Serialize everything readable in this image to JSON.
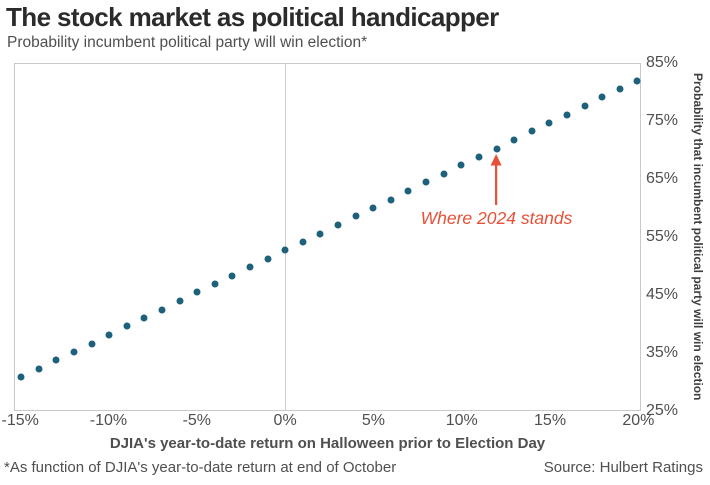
{
  "header": {
    "title": "The stock market as political handicapper",
    "subtitle": "Probability incumbent political party will win election*"
  },
  "chart_data": {
    "type": "scatter",
    "title": "The stock market as political handicapper",
    "subtitle": "Probability incumbent political party will win election*",
    "xlabel": "DJIA's year-to-date return on Halloween prior to Election Day",
    "ylabel": "Probability that incumbent political party will win election",
    "xlim": [
      -15.35,
      20.15
    ],
    "ylim": [
      25,
      85
    ],
    "x_ticks": [
      {
        "value": -15,
        "label": "-15%"
      },
      {
        "value": -10,
        "label": "-10%"
      },
      {
        "value": -5,
        "label": "-5%"
      },
      {
        "value": 0,
        "label": "0%"
      },
      {
        "value": 5,
        "label": "5%"
      },
      {
        "value": 10,
        "label": "10%"
      },
      {
        "value": 15,
        "label": "15%"
      },
      {
        "value": 20,
        "label": "20%"
      }
    ],
    "y_ticks": [
      {
        "value": 85,
        "label": "85%"
      },
      {
        "value": 75,
        "label": "75%"
      },
      {
        "value": 65,
        "label": "65%"
      },
      {
        "value": 55,
        "label": "55%"
      },
      {
        "value": 45,
        "label": "45%"
      },
      {
        "value": 35,
        "label": "35%"
      },
      {
        "value": 25,
        "label": "25%"
      }
    ],
    "grid": "single vertical gridline at x = 0",
    "legend": "none",
    "x": [
      -15,
      -14,
      -13,
      -12,
      -11,
      -10,
      -9,
      -8,
      -7,
      -6,
      -5,
      -4,
      -3,
      -2,
      -1,
      0,
      1,
      2,
      3,
      4,
      5,
      6,
      7,
      8,
      9,
      10,
      11,
      12,
      13,
      14,
      15,
      16,
      17,
      18,
      19,
      20
    ],
    "y": [
      30.7,
      32.1,
      33.6,
      35.1,
      36.5,
      38.0,
      39.5,
      40.9,
      42.4,
      43.9,
      45.4,
      46.8,
      48.3,
      49.8,
      51.2,
      52.7,
      54.2,
      55.6,
      57.1,
      58.6,
      60.1,
      61.5,
      63.0,
      64.5,
      65.9,
      67.4,
      68.9,
      70.3,
      71.8,
      73.3,
      74.8,
      76.2,
      77.7,
      79.2,
      80.6,
      82.1
    ],
    "dot_color": "#1d617b",
    "annotation": {
      "text": "Where 2024 stands",
      "x": 12,
      "y": 70.3,
      "color": "#e65138"
    }
  },
  "footer": {
    "footnote": "*As function of DJIA's year-to-date return at end of October",
    "source": "Source: Hulbert Ratings"
  }
}
